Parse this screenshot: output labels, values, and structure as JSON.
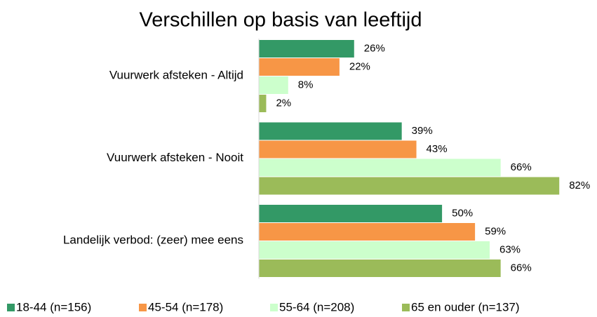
{
  "chart_data": {
    "type": "bar",
    "orientation": "horizontal",
    "title": "Verschillen op basis van leeftijd",
    "categories": [
      "Vuurwerk afsteken - Altijd",
      "Vuurwerk afsteken - Nooit",
      "Landelijk verbod: (zeer) mee eens"
    ],
    "series": [
      {
        "name": "18-44 (n=156)",
        "color": "#339966",
        "values": [
          26,
          39,
          50
        ],
        "value_labels": [
          "26%",
          "39%",
          "50%"
        ]
      },
      {
        "name": "45-54 (n=178)",
        "color": "#f79646",
        "values": [
          22,
          43,
          59
        ],
        "value_labels": [
          "22%",
          "43%",
          "59%"
        ]
      },
      {
        "name": "55-64 (n=208)",
        "color": "#ccffcc",
        "values": [
          8,
          66,
          63
        ],
        "value_labels": [
          "8%",
          "66%",
          "63%"
        ]
      },
      {
        "name": "65 en ouder (n=137)",
        "color": "#9bbb59",
        "values": [
          2,
          82,
          66
        ],
        "value_labels": [
          "2%",
          "82%",
          "66%"
        ]
      }
    ],
    "xlim": [
      0,
      90
    ],
    "legend": "bottom"
  }
}
